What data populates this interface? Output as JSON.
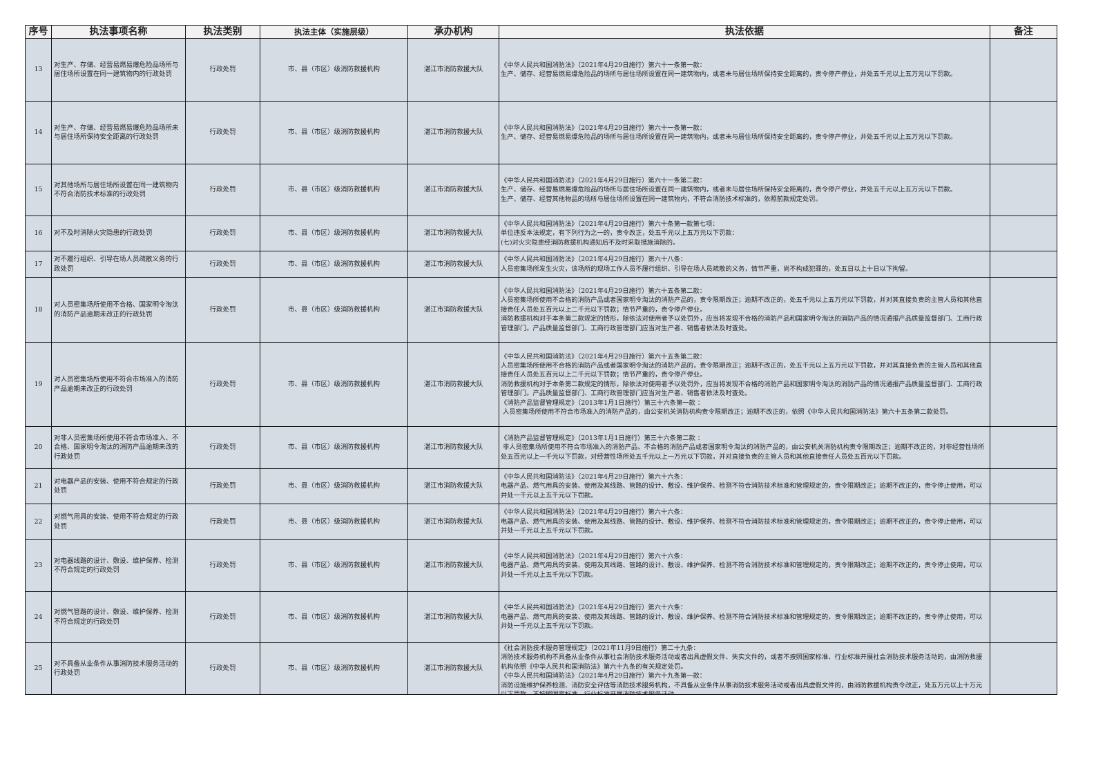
{
  "headers": [
    "序号",
    "执法事项名称",
    "执法类别",
    "执法主体（实施层级）",
    "承办机构",
    "执法依据",
    "备注"
  ],
  "rows": [
    {
      "no": "13",
      "name": "对生产、存储、经营易燃易爆危险品场所与居住场所设置在同一建筑物内的行政处罚",
      "category": "行政处罚",
      "subject": "市、县（市区）级消防救援机构",
      "agency": "湛江市消防救援大队",
      "basis": "《中华人民共和国消防法》（2021年4月29日施行）第六十一条第一款：\n生产、储存、经营易燃易爆危险品的场所与居住场所设置在同一建筑物内，或者未与居住场所保持安全距离的，责令停产停业，并处五千元以上五万元以下罚款。",
      "note": ""
    },
    {
      "no": "14",
      "name": "对生产、存储、经营易燃易爆危险品场所未与居住场所保持安全距离的行政处罚",
      "category": "行政处罚",
      "subject": "市、县（市区）级消防救援机构",
      "agency": "湛江市消防救援大队",
      "basis": "《中华人民共和国消防法》（2021年4月29日施行）第六十一条第一款：\n生产、储存、经营易燃易爆危险品的场所与居住场所设置在同一建筑物内，或者未与居住场所保持安全距离的，责令停产停业，并处五千元以上五万元以下罚款。",
      "note": ""
    },
    {
      "no": "15",
      "name": "对其他场所与居住场所设置在同一建筑物内不符合消防技术标准的行政处罚",
      "category": "行政处罚",
      "subject": "市、县（市区）级消防救援机构",
      "agency": "湛江市消防救援大队",
      "basis": "《中华人民共和国消防法》（2021年4月29日施行）第六十一条第二款：\n生产、储存、经营易燃易爆危险品的场所与居住场所设置在同一建筑物内，或者未与居住场所保持安全距离的，责令停产停业，并处五千元以上五万元以下罚款。\n生产、储存、经营其他物品的场所与居住场所设置在同一建筑物内，不符合消防技术标准的，依照前款规定处罚。",
      "note": ""
    },
    {
      "no": "16",
      "name": "对不及时消除火灾隐患的行政处罚",
      "category": "行政处罚",
      "subject": "市、县（市区）级消防救援机构",
      "agency": "湛江市消防救援大队",
      "basis": "《中华人民共和国消防法》（2021年4月29日施行）第六十条第一款第七项：\n单位违反本法规定，有下列行为之一的，责令改正，处五千元以上五万元以下罚款：\n(七)对火灾隐患经消防救援机构通知后不及时采取措施消除的。",
      "note": ""
    },
    {
      "no": "17",
      "name": "对不履行组织、引导在场人员疏散义务的行政处罚",
      "category": "行政处罚",
      "subject": "市、县（市区）级消防救援机构",
      "agency": "湛江市消防救援大队",
      "basis": "《中华人民共和国消防法》（2021年4月29日施行）第六十八条：\n人员密集场所发生火灾，该场所的现场工作人员不履行组织、引导在场人员疏散的义务，情节严重，尚不构成犯罪的，处五日以上十日以下拘留。",
      "note": ""
    },
    {
      "no": "18",
      "name": "对人员密集场所使用不合格、国家明令淘汰的消防产品逾期未改正的行政处罚",
      "category": "行政处罚",
      "subject": "市、县（市区）级消防救援机构",
      "agency": "湛江市消防救援大队",
      "basis": "《中华人民共和国消防法》（2021年4月29日施行）第六十五条第二款：\n人员密集场所使用不合格的消防产品或者国家明令淘汰的消防产品的，责令限期改正；逾期不改正的，处五千元以上五万元以下罚款，并对其直接负责的主管人员和其他直接责任人员处五百元以上二千元以下罚款；情节严重的，责令停产停业。\n消防救援机构对于本条第二款规定的情形，除依法对使用者予以处罚外，应当将发现不合格的消防产品和国家明令淘汰的消防产品的情况通报产品质量监督部门、工商行政管理部门。产品质量监督部门、工商行政管理部门应当对生产者、销售者依法及时查处。",
      "note": ""
    },
    {
      "no": "19",
      "name": "对人员密集场所使用不符合市场准入的消防产品逾期未改正的行政处罚",
      "category": "行政处罚",
      "subject": "市、县（市区）级消防救援机构",
      "agency": "湛江市消防救援大队",
      "basis": "《中华人民共和国消防法》（2021年4月29日施行）第六十五条第二款：\n人员密集场所使用不合格的消防产品或者国家明令淘汰的消防产品的，责令限期改正；逾期不改正的，处五千元以上五万元以下罚款，并对其直接负责的主管人员和其他直接责任人员处五百元以上二千元以下罚款；情节严重的，责令停产停业。\n消防救援机构对于本条第二款规定的情形，除依法对使用者予以处罚外，应当将发现不合格的消防产品和国家明令淘汰的消防产品的情况通报产品质量监督部门、工商行政管理部门。产品质量监督部门、工商行政管理部门应当对生产者、销售者依法及时查处。\n《消防产品监督管理规定》（2013年1月1日施行）第三十六条第一款 ：\n 人员密集场所使用不符合市场准入的消防产品的，由公安机关消防机构责令限期改正；逾期不改正的，依照《中华人民共和国消防法》第六十五条第二款处罚。",
      "note": ""
    },
    {
      "no": "20",
      "name": "对非人员密集场所使用不符合市场准入、不合格、国家明令淘汰的消防产品逾期未改的行政处罚",
      "category": "行政处罚",
      "subject": "市、县（市区）级消防救援机构",
      "agency": "湛江市消防救援大队",
      "basis": "《消防产品监督管理规定》（2013年1月1日施行）第三十六条第二款 ：\n 非人员密集场所使用不符合市场准入的消防产品、不合格的消防产品或者国家明令淘汰的消防产品的，由公安机关消防机构责令限期改正；逾期不改正的，对非经营性场所处五百元以上一千元以下罚款，对经营性场所处五千元以上一万元以下罚款，并对直接负责的主管人员和其他直接责任人员处五百元以下罚款。",
      "note": ""
    },
    {
      "no": "21",
      "name": "对电器产品的安装、使用不符合规定的行政处罚",
      "category": "行政处罚",
      "subject": "市、县（市区）级消防救援机构",
      "agency": "湛江市消防救援大队",
      "basis": "《中华人民共和国消防法》（2021年4月29日施行）第六十六条：\n电器产品、燃气用具的安装、使用及其线路、管路的设计、敷设、维护保养、检测不符合消防技术标准和管理规定的，责令限期改正；逾期不改正的，责令停止使用，可以并处一千元以上五千元以下罚款。",
      "note": ""
    },
    {
      "no": "22",
      "name": "对燃气用具的安装、使用不符合规定的行政处罚",
      "category": "行政处罚",
      "subject": "市、县（市区）级消防救援机构",
      "agency": "湛江市消防救援大队",
      "basis": "《中华人民共和国消防法》（2021年4月29日施行）第六十六条：\n电器产品、燃气用具的安装、使用及其线路、管路的设计、敷设、维护保养、检测不符合消防技术标准和管理规定的，责令限期改正；逾期不改正的，责令停止使用，可以并处一千元以上五千元以下罚款。",
      "note": ""
    },
    {
      "no": "23",
      "name": "对电器线路的设计、敷设、维护保养、检测不符合规定的行政处罚",
      "category": "行政处罚",
      "subject": "市、县（市区）级消防救援机构",
      "agency": "湛江市消防救援大队",
      "basis": "《中华人民共和国消防法》（2021年4月29日施行）第六十六条：\n电器产品、燃气用具的安装、使用及其线路、管路的设计、敷设、维护保养、检测不符合消防技术标准和管理规定的，责令限期改正；逾期不改正的，责令停止使用，可以并处一千元以上五千元以下罚款。",
      "note": ""
    },
    {
      "no": "24",
      "name": "对燃气管路的设计、敷设、维护保养、检测不符合规定的行政处罚",
      "category": "行政处罚",
      "subject": "市、县（市区）级消防救援机构",
      "agency": "湛江市消防救援大队",
      "basis": "《中华人民共和国消防法》（2021年4月29日施行）第六十六条：\n电器产品、燃气用具的安装、使用及其线路、管路的设计、敷设、维护保养、检测不符合消防技术标准和管理规定的，责令限期改正；逾期不改正的，责令停止使用，可以并处一千元以上五千元以下罚款。",
      "note": ""
    },
    {
      "no": "25",
      "name": "对不具备从业条件从事消防技术服务活动的行政处罚",
      "category": "行政处罚",
      "subject": "市、县（市区）级消防救援机构",
      "agency": "湛江市消防救援大队",
      "basis": "《社会消防技术服务管理规定》（2021年11月9日施行）第二十九条：\n消防技术服务机构不具备从业条件从事社会消防技术服务活动或者出具虚假文件、失实文件的，或者不按照国家标准、行业标准开展社会消防技术服务活动的，由消防救援机构依照《中华人民共和国消防法》第六十九条的有关规定处罚。\n《中华人民共和国消防法》（2021年4月29日施行）第六十九条第一款：\n消防设施维护保养检测、消防安全评估等消防技术服务机构，不具备从业条件从事消防技术服务活动或者出具虚假文件的，由消防救援机构责令改正，处五万元以上十万元以下罚款，不按照国家标准、行业标准开展消防技术服务活动",
      "note": ""
    }
  ]
}
